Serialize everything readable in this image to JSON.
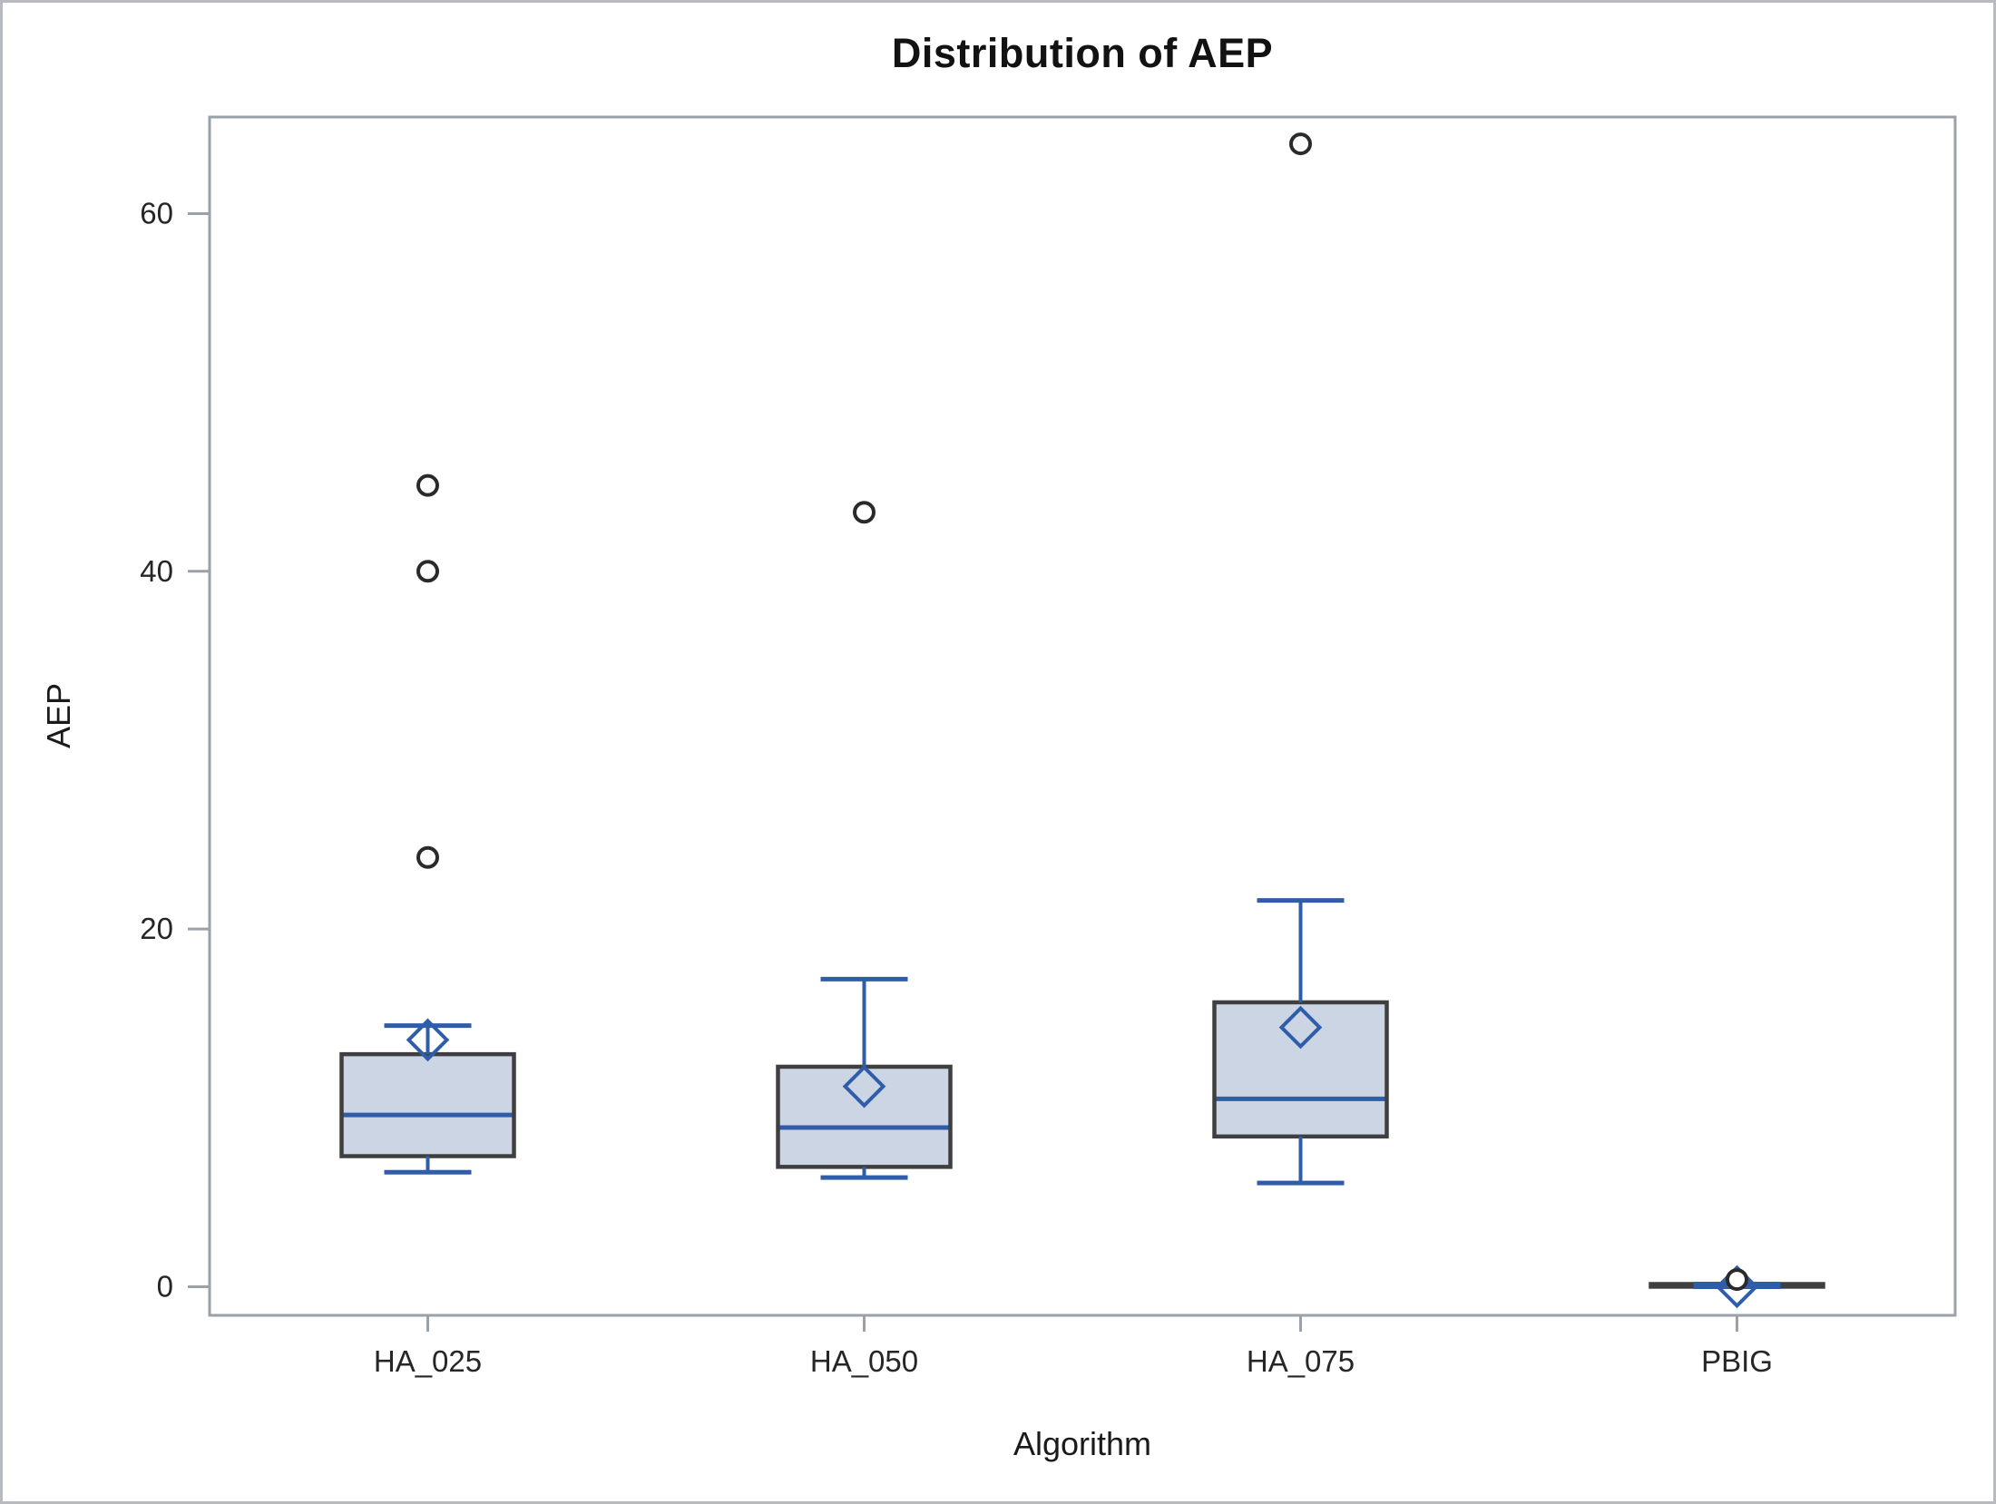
{
  "title": "Distribution of AEP",
  "x_axis": {
    "label": "Algorithm"
  },
  "y_axis": {
    "label": "AEP"
  },
  "colors": {
    "box_fill": "#ccd5e4",
    "box_border": "#3f3f3f",
    "line_blue": "#2f5daa",
    "outlier_stroke": "#2a2a2a",
    "frame": "#9aa1a8",
    "tick_text": "#262626",
    "figure_border": "#b7bbc0"
  },
  "chart_data": {
    "type": "boxplot",
    "title": "Distribution of AEP",
    "xlabel": "Algorithm",
    "ylabel": "AEP",
    "ylim": [
      -1.6,
      65.4
    ],
    "yticks": [
      0,
      20,
      40,
      60
    ],
    "grid": false,
    "legend": "none",
    "categories": [
      "HA_025",
      "HA_050",
      "HA_075",
      "PBIG"
    ],
    "series": [
      {
        "category": "HA_025",
        "whisker_low": 6.4,
        "q1": 7.3,
        "median": 9.6,
        "q3": 13.0,
        "whisker_high": 14.6,
        "mean": 13.8,
        "outliers": [
          24.0,
          40.0,
          44.8
        ]
      },
      {
        "category": "HA_050",
        "whisker_low": 6.1,
        "q1": 6.7,
        "median": 8.9,
        "q3": 12.3,
        "whisker_high": 17.2,
        "mean": 11.2,
        "outliers": [
          43.3
        ]
      },
      {
        "category": "HA_075",
        "whisker_low": 5.8,
        "q1": 8.4,
        "median": 10.5,
        "q3": 15.9,
        "whisker_high": 21.6,
        "mean": 14.5,
        "outliers": [
          63.9
        ]
      },
      {
        "category": "PBIG",
        "whisker_low": 0.0,
        "q1": 0.0,
        "median": 0.05,
        "q3": 0.15,
        "whisker_high": 0.15,
        "mean": 0.0,
        "outliers": [
          0.4
        ]
      }
    ]
  }
}
